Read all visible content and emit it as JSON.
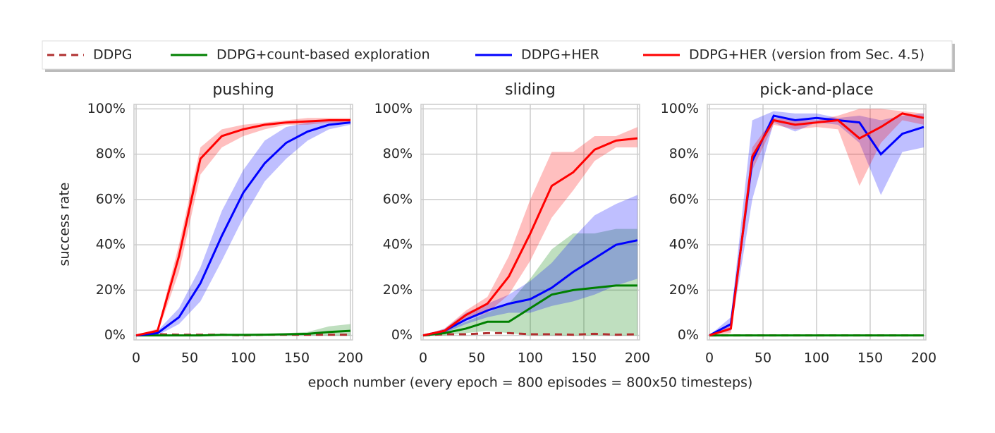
{
  "chart_data": [
    {
      "type": "line",
      "title": "pushing",
      "ylabel": "success rate",
      "legend": "top",
      "x": [
        0,
        20,
        40,
        60,
        80,
        100,
        120,
        140,
        160,
        180,
        200
      ],
      "xlim": [
        -2,
        202
      ],
      "xticks": [
        0,
        50,
        100,
        150,
        200
      ],
      "ylim": [
        -2,
        102
      ],
      "yticks": [
        {
          "value": 0,
          "label": "0%"
        },
        {
          "value": 20,
          "label": "20%"
        },
        {
          "value": 40,
          "label": "40%"
        },
        {
          "value": 60,
          "label": "60%"
        },
        {
          "value": 80,
          "label": "80%"
        },
        {
          "value": 100,
          "label": "100%"
        }
      ],
      "grid": true,
      "series": [
        {
          "name": "DDPG",
          "color": "#b03030",
          "linestyle": "dashed",
          "values": [
            0,
            0.5,
            0.3,
            0.3,
            0.3,
            0,
            0.3,
            0.3,
            0.3,
            0.3,
            0.3
          ]
        },
        {
          "name": "DDPG+count-based exploration",
          "color": "#008000",
          "values": [
            0,
            0,
            0,
            0,
            0.2,
            0.2,
            0.3,
            0.5,
            0.7,
            1.5,
            2
          ],
          "upper": [
            0,
            0.3,
            0.3,
            0.3,
            0.5,
            0.5,
            0.6,
            1,
            1.5,
            4,
            5
          ],
          "lower": [
            0,
            0,
            0,
            0,
            0,
            0,
            0,
            0,
            0,
            0,
            0
          ]
        },
        {
          "name": "DDPG+HER",
          "color": "#0000ff",
          "values": [
            0,
            1,
            8,
            23,
            44,
            63,
            76,
            85,
            90,
            93,
            94
          ],
          "upper": [
            0,
            2,
            12,
            30,
            55,
            73,
            86,
            92,
            94,
            95,
            95
          ],
          "lower": [
            0,
            0,
            5,
            15,
            33,
            52,
            68,
            78,
            86,
            91,
            93
          ]
        },
        {
          "name": "DDPG+HER (version from Sec. 4.5)",
          "color": "#ff0000",
          "values": [
            0,
            2,
            35,
            78,
            88,
            91,
            93,
            94,
            94.5,
            95,
            95
          ],
          "upper": [
            0,
            3,
            40,
            83,
            91,
            93,
            94,
            95,
            96,
            96,
            96
          ],
          "lower": [
            0,
            1,
            28,
            71,
            83,
            88,
            91,
            93,
            93,
            94,
            94
          ]
        }
      ]
    },
    {
      "type": "line",
      "title": "sliding",
      "xlabel": "epoch number (every epoch = 800 episodes = 800x50 timesteps)",
      "x": [
        0,
        20,
        40,
        60,
        80,
        100,
        120,
        140,
        160,
        180,
        200
      ],
      "xlim": [
        -2,
        202
      ],
      "xticks": [
        0,
        50,
        100,
        150,
        200
      ],
      "ylim": [
        -2,
        102
      ],
      "yticks": [
        {
          "value": 0,
          "label": "0%"
        },
        {
          "value": 20,
          "label": "20%"
        },
        {
          "value": 40,
          "label": "40%"
        },
        {
          "value": 60,
          "label": "60%"
        },
        {
          "value": 80,
          "label": "80%"
        },
        {
          "value": 100,
          "label": "100%"
        }
      ],
      "grid": true,
      "series": [
        {
          "name": "DDPG",
          "color": "#b03030",
          "linestyle": "dashed",
          "values": [
            0,
            0.5,
            0.5,
            1,
            1,
            0.5,
            0.5,
            0.3,
            0.7,
            0.3,
            0.5
          ]
        },
        {
          "name": "DDPG+count-based exploration",
          "color": "#008000",
          "values": [
            0,
            1,
            3,
            6,
            6,
            12,
            18,
            20,
            21,
            22,
            22
          ],
          "upper": [
            0,
            2,
            6,
            10,
            14,
            25,
            38,
            45,
            45,
            47,
            47
          ],
          "lower": [
            0,
            0,
            1,
            2,
            1,
            0,
            0,
            0,
            0,
            0,
            0
          ]
        },
        {
          "name": "DDPG+HER",
          "color": "#0000ff",
          "values": [
            0,
            2,
            7,
            11,
            14,
            16,
            21,
            28,
            34,
            40,
            42
          ],
          "upper": [
            0,
            3,
            10,
            14,
            18,
            24,
            32,
            43,
            53,
            58,
            62
          ],
          "lower": [
            0,
            1,
            5,
            8,
            10,
            10,
            13,
            15,
            18,
            22,
            25
          ]
        },
        {
          "name": "DDPG+HER (version from Sec. 4.5)",
          "color": "#ff0000",
          "values": [
            0,
            2,
            9,
            14,
            26,
            45,
            66,
            72,
            82,
            86,
            87
          ],
          "upper": [
            0,
            3,
            11,
            17,
            35,
            60,
            81,
            81,
            88,
            88,
            92
          ],
          "lower": [
            0,
            1,
            7,
            10,
            18,
            33,
            52,
            64,
            77,
            83,
            83
          ]
        }
      ]
    },
    {
      "type": "line",
      "title": "pick-and-place",
      "x": [
        0,
        20,
        40,
        60,
        80,
        100,
        120,
        140,
        160,
        180,
        200
      ],
      "xlim": [
        -2,
        202
      ],
      "xticks": [
        0,
        50,
        100,
        150,
        200
      ],
      "ylim": [
        -2,
        102
      ],
      "yticks": [
        {
          "value": 0,
          "label": "0%"
        },
        {
          "value": 20,
          "label": "20%"
        },
        {
          "value": 40,
          "label": "40%"
        },
        {
          "value": 60,
          "label": "60%"
        },
        {
          "value": 80,
          "label": "80%"
        },
        {
          "value": 100,
          "label": "100%"
        }
      ],
      "grid": true,
      "series": [
        {
          "name": "DDPG",
          "color": "#b03030",
          "linestyle": "dashed",
          "values": [
            0,
            0,
            0,
            0,
            0,
            0,
            0,
            0,
            0,
            0,
            0
          ]
        },
        {
          "name": "DDPG+count-based exploration",
          "color": "#008000",
          "values": [
            0,
            0,
            0,
            0,
            0,
            0,
            0,
            0,
            0,
            0,
            0
          ]
        },
        {
          "name": "DDPG+HER",
          "color": "#0000ff",
          "values": [
            0,
            5,
            77,
            97,
            95,
            96,
            95,
            94,
            80,
            89,
            92
          ],
          "upper": [
            0,
            8,
            95,
            99,
            98,
            98,
            96,
            97,
            95,
            97,
            98
          ],
          "lower": [
            0,
            2,
            60,
            94,
            90,
            94,
            93,
            85,
            62,
            81,
            83
          ]
        },
        {
          "name": "DDPG+HER (version from Sec. 4.5)",
          "color": "#ff0000",
          "values": [
            0,
            3,
            79,
            95,
            93,
            94,
            95,
            87,
            92,
            98,
            96
          ],
          "upper": [
            0,
            5,
            83,
            96,
            95,
            95,
            97,
            100,
            100,
            99,
            98
          ],
          "lower": [
            0,
            1,
            73,
            93,
            91,
            92,
            91,
            66,
            85,
            95,
            93
          ]
        }
      ]
    }
  ]
}
